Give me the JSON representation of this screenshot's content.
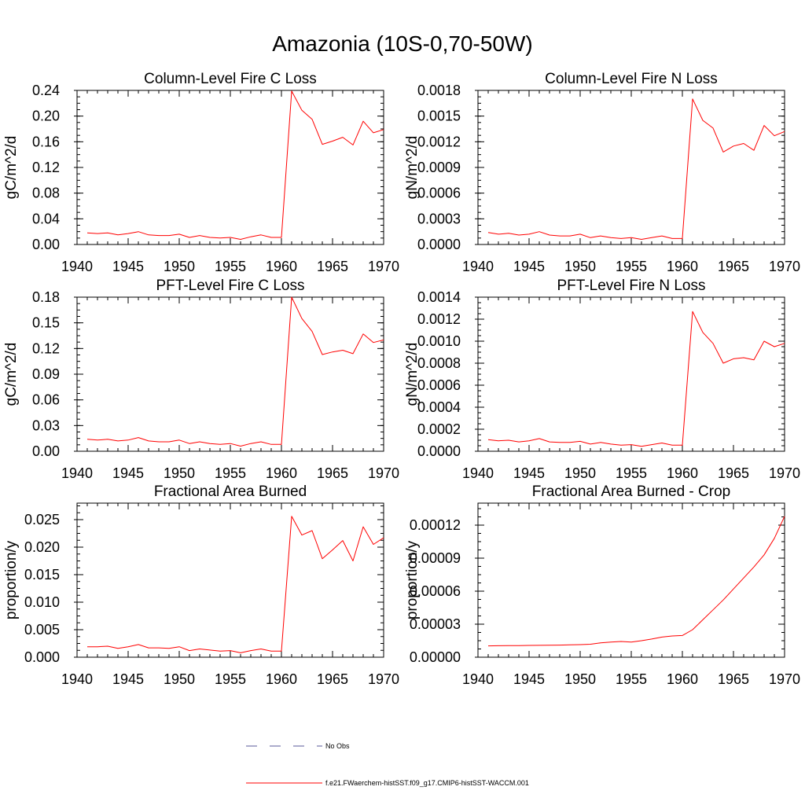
{
  "figure": {
    "title": "Amazonia (10S-0,70-50W)",
    "legend": [
      {
        "label": "No Obs",
        "color": "#5a5a9a",
        "style": "dashed"
      },
      {
        "label": "f.e21.FWaerchem-histSST.f09_g17.CMIP6-histSST-WACCM.001",
        "color": "#ff0000",
        "style": "solid"
      }
    ]
  },
  "chart_data": [
    {
      "type": "line",
      "title": "Column-Level Fire C Loss",
      "ylabel": "gC/m^2/d",
      "xlim": [
        1940,
        1970
      ],
      "ylim": [
        0,
        0.24
      ],
      "xticks": [
        "1940",
        "1945",
        "1950",
        "1955",
        "1960",
        "1965",
        "1970"
      ],
      "yticks": [
        "0.00",
        "0.04",
        "0.08",
        "0.12",
        "0.16",
        "0.20",
        "0.24"
      ],
      "x": [
        1941,
        1942,
        1943,
        1944,
        1945,
        1946,
        1947,
        1948,
        1949,
        1950,
        1951,
        1952,
        1953,
        1954,
        1955,
        1956,
        1957,
        1958,
        1959,
        1960,
        1961,
        1962,
        1963,
        1964,
        1965,
        1966,
        1967,
        1968,
        1969,
        1970
      ],
      "series": [
        {
          "color": "#ff0000",
          "values": [
            0.018,
            0.017,
            0.018,
            0.015,
            0.017,
            0.02,
            0.015,
            0.014,
            0.014,
            0.016,
            0.011,
            0.014,
            0.011,
            0.01,
            0.011,
            0.008,
            0.012,
            0.015,
            0.011,
            0.011,
            0.239,
            0.209,
            0.195,
            0.156,
            0.161,
            0.167,
            0.155,
            0.192,
            0.174,
            0.179
          ]
        }
      ]
    },
    {
      "type": "line",
      "title": "Column-Level Fire N Loss",
      "ylabel": "gN/m^2/d",
      "xlim": [
        1940,
        1970
      ],
      "ylim": [
        0,
        0.0018
      ],
      "xticks": [
        "1940",
        "1945",
        "1950",
        "1955",
        "1960",
        "1965",
        "1970"
      ],
      "yticks": [
        "0.0000",
        "0.0003",
        "0.0006",
        "0.0009",
        "0.0012",
        "0.0015",
        "0.0018"
      ],
      "x": [
        1941,
        1942,
        1943,
        1944,
        1945,
        1946,
        1947,
        1948,
        1949,
        1950,
        1951,
        1952,
        1953,
        1954,
        1955,
        1956,
        1957,
        1958,
        1959,
        1960,
        1961,
        1962,
        1963,
        1964,
        1965,
        1966,
        1967,
        1968,
        1969,
        1970
      ],
      "series": [
        {
          "color": "#ff0000",
          "values": [
            0.00014,
            0.00012,
            0.00013,
            0.00011,
            0.00012,
            0.00015,
            0.00011,
            0.0001,
            0.0001,
            0.00012,
            8e-05,
            0.0001,
            8e-05,
            7e-05,
            8e-05,
            6e-05,
            8e-05,
            0.0001,
            7e-05,
            7e-05,
            0.0017,
            0.00145,
            0.00136,
            0.00108,
            0.00115,
            0.00118,
            0.0011,
            0.00139,
            0.00127,
            0.00132
          ]
        }
      ]
    },
    {
      "type": "line",
      "title": "PFT-Level Fire C Loss",
      "ylabel": "gC/m^2/d",
      "xlim": [
        1940,
        1970
      ],
      "ylim": [
        0,
        0.18
      ],
      "xticks": [
        "1940",
        "1945",
        "1950",
        "1955",
        "1960",
        "1965",
        "1970"
      ],
      "yticks": [
        "0.00",
        "0.03",
        "0.06",
        "0.09",
        "0.12",
        "0.15",
        "0.18"
      ],
      "x": [
        1941,
        1942,
        1943,
        1944,
        1945,
        1946,
        1947,
        1948,
        1949,
        1950,
        1951,
        1952,
        1953,
        1954,
        1955,
        1956,
        1957,
        1958,
        1959,
        1960,
        1961,
        1962,
        1963,
        1964,
        1965,
        1966,
        1967,
        1968,
        1969,
        1970
      ],
      "series": [
        {
          "color": "#ff0000",
          "values": [
            0.014,
            0.013,
            0.014,
            0.012,
            0.013,
            0.016,
            0.012,
            0.011,
            0.011,
            0.013,
            0.009,
            0.011,
            0.009,
            0.008,
            0.009,
            0.006,
            0.009,
            0.011,
            0.008,
            0.008,
            0.18,
            0.155,
            0.14,
            0.113,
            0.116,
            0.118,
            0.114,
            0.137,
            0.127,
            0.13
          ]
        }
      ]
    },
    {
      "type": "line",
      "title": "PFT-Level Fire N Loss",
      "ylabel": "gN/m^2/d",
      "xlim": [
        1940,
        1970
      ],
      "ylim": [
        0,
        0.0014
      ],
      "xticks": [
        "1940",
        "1945",
        "1950",
        "1955",
        "1960",
        "1965",
        "1970"
      ],
      "yticks": [
        "0.0000",
        "0.0002",
        "0.0004",
        "0.0006",
        "0.0008",
        "0.0010",
        "0.0012",
        "0.0014"
      ],
      "x": [
        1941,
        1942,
        1943,
        1944,
        1945,
        1946,
        1947,
        1948,
        1949,
        1950,
        1951,
        1952,
        1953,
        1954,
        1955,
        1956,
        1957,
        1958,
        1959,
        1960,
        1961,
        1962,
        1963,
        1964,
        1965,
        1966,
        1967,
        1968,
        1969,
        1970
      ],
      "series": [
        {
          "color": "#ff0000",
          "values": [
            0.000105,
            9.5e-05,
            0.0001,
            8.5e-05,
            9.5e-05,
            0.000115,
            8.5e-05,
            8e-05,
            8e-05,
            9e-05,
            6.5e-05,
            8e-05,
            6.5e-05,
            5.5e-05,
            6e-05,
            4.5e-05,
            6e-05,
            7.5e-05,
            5.5e-05,
            5.5e-05,
            0.00127,
            0.00108,
            0.00098,
            0.0008,
            0.00084,
            0.00085,
            0.00083,
            0.001,
            0.00095,
            0.00098
          ]
        }
      ]
    },
    {
      "type": "line",
      "title": "Fractional Area Burned",
      "ylabel": "proportion/y",
      "xlim": [
        1940,
        1970
      ],
      "ylim": [
        0,
        0.028
      ],
      "xticks": [
        "1940",
        "1945",
        "1950",
        "1955",
        "1960",
        "1965",
        "1970"
      ],
      "yticks": [
        "0.000",
        "0.005",
        "0.010",
        "0.015",
        "0.020",
        "0.025"
      ],
      "x": [
        1941,
        1942,
        1943,
        1944,
        1945,
        1946,
        1947,
        1948,
        1949,
        1950,
        1951,
        1952,
        1953,
        1954,
        1955,
        1956,
        1957,
        1958,
        1959,
        1960,
        1961,
        1962,
        1963,
        1964,
        1965,
        1966,
        1967,
        1968,
        1969,
        1970
      ],
      "series": [
        {
          "color": "#ff0000",
          "values": [
            0.0019,
            0.0019,
            0.002,
            0.0016,
            0.0019,
            0.0023,
            0.0017,
            0.0017,
            0.0016,
            0.0019,
            0.0012,
            0.0015,
            0.0013,
            0.0011,
            0.0012,
            0.0008,
            0.0012,
            0.0015,
            0.0011,
            0.0011,
            0.0256,
            0.0222,
            0.023,
            0.0179,
            0.0195,
            0.0212,
            0.0175,
            0.0237,
            0.0205,
            0.0217
          ]
        }
      ]
    },
    {
      "type": "line",
      "title": "Fractional Area Burned - Crop",
      "ylabel": "proportion/y",
      "xlim": [
        1940,
        1970
      ],
      "ylim": [
        0,
        0.00014
      ],
      "xticks": [
        "1940",
        "1945",
        "1950",
        "1955",
        "1960",
        "1965",
        "1970"
      ],
      "yticks": [
        "0.00000",
        "0.00003",
        "0.00006",
        "0.00009",
        "0.00012"
      ],
      "x": [
        1941,
        1942,
        1943,
        1944,
        1945,
        1946,
        1947,
        1948,
        1949,
        1950,
        1951,
        1952,
        1953,
        1954,
        1955,
        1956,
        1957,
        1958,
        1959,
        1960,
        1961,
        1962,
        1963,
        1964,
        1965,
        1966,
        1967,
        1968,
        1969,
        1970
      ],
      "series": [
        {
          "color": "#ff0000",
          "values": [
            1.03e-05,
            1.04e-05,
            1.05e-05,
            1.06e-05,
            1.07e-05,
            1.08e-05,
            1.09e-05,
            1.1e-05,
            1.12e-05,
            1.14e-05,
            1.18e-05,
            1.3e-05,
            1.38e-05,
            1.43e-05,
            1.38e-05,
            1.5e-05,
            1.65e-05,
            1.83e-05,
            1.93e-05,
            1.97e-05,
            2.5e-05,
            3.4e-05,
            4.3e-05,
            5.2e-05,
            6.2e-05,
            7.2e-05,
            8.2e-05,
            9.3e-05,
            0.000108,
            0.000128
          ]
        }
      ]
    }
  ]
}
